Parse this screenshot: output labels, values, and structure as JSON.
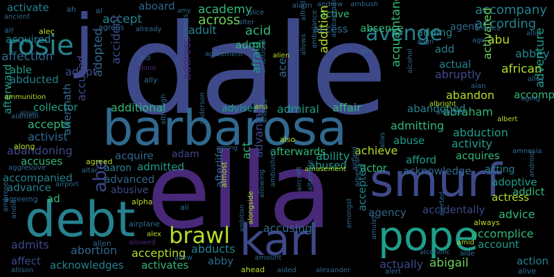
{
  "palette": [
    "#440154",
    "#482878",
    "#3e4989",
    "#31688e",
    "#26828e",
    "#1f9e89",
    "#35b779",
    "#6ece58",
    "#b5de2b",
    "#fde725"
  ],
  "words": [
    {
      "text": "dale",
      "color": "#3e4989"
    },
    {
      "text": "ella",
      "color": "#482878"
    },
    {
      "text": "barbarosa",
      "color": "#31688e"
    },
    {
      "text": "j",
      "color": "#3e4989"
    },
    {
      "text": "smurf",
      "color": "#3e4989"
    },
    {
      "text": "debt",
      "color": "#26828e"
    },
    {
      "text": "karl",
      "color": "#3e4989"
    },
    {
      "text": "pope",
      "color": "#1f9e89"
    },
    {
      "text": "rosie",
      "color": "#26828e"
    },
    {
      "text": "brawl",
      "color": "#b5de2b"
    },
    {
      "text": "avenge",
      "color": "#26828e"
    },
    {
      "text": "abe",
      "color": "#3e4989"
    },
    {
      "text": "accompany",
      "color": "#26828e"
    },
    {
      "text": "according",
      "color": "#26828e"
    },
    {
      "text": "academy",
      "color": "#35b779"
    },
    {
      "text": "across",
      "color": "#6ece58"
    },
    {
      "text": "acid",
      "color": "#35b779"
    },
    {
      "text": "adult",
      "color": "#26828e"
    },
    {
      "text": "admit",
      "color": "#35b779"
    },
    {
      "text": "active",
      "color": "#35b779"
    },
    {
      "text": "access",
      "color": "#31688e"
    },
    {
      "text": "absence",
      "color": "#35b779"
    },
    {
      "text": "accept",
      "color": "#26828e"
    },
    {
      "text": "aboard",
      "color": "#31688e"
    },
    {
      "text": "activate",
      "color": "#26828e"
    },
    {
      "text": "acquired",
      "color": "#26828e"
    },
    {
      "text": "affection",
      "color": "#31688e"
    },
    {
      "text": "able",
      "color": "#1f9e89"
    },
    {
      "text": "abducted",
      "color": "#26828e"
    },
    {
      "text": "adopt",
      "color": "#3e4989"
    },
    {
      "text": "adopted",
      "color": "#31688e"
    },
    {
      "text": "accident",
      "color": "#3e4989"
    },
    {
      "text": "collector",
      "color": "#1f9e89"
    },
    {
      "text": "accepts",
      "color": "#35b779"
    },
    {
      "text": "activist",
      "color": "#31688e"
    },
    {
      "text": "abandoning",
      "color": "#3e4989"
    },
    {
      "text": "accuses",
      "color": "#35b779"
    },
    {
      "text": "accompanied",
      "color": "#26828e"
    },
    {
      "text": "advance",
      "color": "#26828e"
    },
    {
      "text": "additional",
      "color": "#35b779"
    },
    {
      "text": "advises",
      "color": "#1f9e89"
    },
    {
      "text": "admiral",
      "color": "#1f9e89"
    },
    {
      "text": "affair",
      "color": "#35b779"
    },
    {
      "text": "admitting",
      "color": "#35b779"
    },
    {
      "text": "abduction",
      "color": "#1f9e89"
    },
    {
      "text": "abuse",
      "color": "#1f9e89"
    },
    {
      "text": "activity",
      "color": "#1f9e89"
    },
    {
      "text": "achieve",
      "color": "#b5de2b"
    },
    {
      "text": "ability",
      "color": "#1f9e89"
    },
    {
      "text": "afford",
      "color": "#1f9e89"
    },
    {
      "text": "acquires",
      "color": "#35b779"
    },
    {
      "text": "acquire",
      "color": "#31688e"
    },
    {
      "text": "adam",
      "color": "#3e4989"
    },
    {
      "text": "afterwards",
      "color": "#35b779"
    },
    {
      "text": "admitted",
      "color": "#1f9e89"
    },
    {
      "text": "aaron",
      "color": "#26828e"
    },
    {
      "text": "abused",
      "color": "#1f9e89"
    },
    {
      "text": "actor",
      "color": "#35b779"
    },
    {
      "text": "acknowledge",
      "color": "#31688e"
    },
    {
      "text": "acting",
      "color": "#26828e"
    },
    {
      "text": "advanced",
      "color": "#31688e"
    },
    {
      "text": "adoptive",
      "color": "#1f9e89"
    },
    {
      "text": "addict",
      "color": "#35b779"
    },
    {
      "text": "actress",
      "color": "#b5de2b"
    },
    {
      "text": "abusive",
      "color": "#3e4989"
    },
    {
      "text": "ad",
      "color": "#35b779"
    },
    {
      "text": "advice",
      "color": "#35b779"
    },
    {
      "text": "accidentally",
      "color": "#3e4989"
    },
    {
      "text": "agency",
      "color": "#31688e"
    },
    {
      "text": "accusing",
      "color": "#31688e"
    },
    {
      "text": "accomplice",
      "color": "#35b779"
    },
    {
      "text": "account",
      "color": "#1f9e89"
    },
    {
      "text": "abortion",
      "color": "#31688e"
    },
    {
      "text": "accepting",
      "color": "#b5de2b"
    },
    {
      "text": "abducts",
      "color": "#26828e"
    },
    {
      "text": "abby",
      "color": "#31688e"
    },
    {
      "text": "admits",
      "color": "#3e4989"
    },
    {
      "text": "affect",
      "color": "#3e4989"
    },
    {
      "text": "acknowledges",
      "color": "#26828e"
    },
    {
      "text": "activates",
      "color": "#35b779"
    },
    {
      "text": "abigail",
      "color": "#6ece58"
    },
    {
      "text": "action",
      "color": "#26828e"
    },
    {
      "text": "actually",
      "color": "#3e4989"
    },
    {
      "text": "abbey",
      "color": "#26828e"
    },
    {
      "text": "abu",
      "color": "#b5de2b"
    },
    {
      "text": "african",
      "color": "#b5de2b"
    },
    {
      "text": "abruptly",
      "color": "#3e4989"
    },
    {
      "text": "actual",
      "color": "#26828e"
    },
    {
      "text": "add",
      "color": "#26828e"
    },
    {
      "text": "adding",
      "color": "#26828e"
    },
    {
      "text": "agent",
      "color": "#31688e"
    },
    {
      "text": "abandon",
      "color": "#b5de2b"
    },
    {
      "text": "abraham",
      "color": "#35b779"
    },
    {
      "text": "abandoned",
      "color": "#26828e"
    },
    {
      "text": "acquaintance",
      "color": "#35b779"
    },
    {
      "text": "addition",
      "color": "#b5de2b"
    },
    {
      "text": "address",
      "color": "#482878"
    },
    {
      "text": "afraid",
      "color": "#1f9e89"
    },
    {
      "text": "ace",
      "color": "#31688e"
    },
    {
      "text": "act",
      "color": "#35b779"
    },
    {
      "text": "accused",
      "color": "#3e4989"
    },
    {
      "text": "aftermath",
      "color": "#31688e"
    },
    {
      "text": "afterlife",
      "color": "#31688e"
    },
    {
      "text": "advantage",
      "color": "#3e4989"
    },
    {
      "text": "afterward",
      "color": "#1f9e89"
    },
    {
      "text": "accepted",
      "color": "#26828e"
    },
    {
      "text": "accompanies",
      "color": "#35b779"
    },
    {
      "text": "activated",
      "color": "#6ece58"
    },
    {
      "text": "adventure",
      "color": "#1f9e89"
    },
    {
      "text": "ah",
      "color": "#31688e"
    },
    {
      "text": "al",
      "color": "#31688e"
    },
    {
      "text": "ancient",
      "color": "#31688e"
    },
    {
      "text": "air",
      "color": "#31688e"
    },
    {
      "text": "agrees",
      "color": "#31688e"
    },
    {
      "text": "already",
      "color": "#31688e"
    },
    {
      "text": "alarm",
      "color": "#31688e"
    },
    {
      "text": "andrew",
      "color": "#31688e"
    },
    {
      "text": "ambush",
      "color": "#31688e"
    },
    {
      "text": "alice",
      "color": "#31688e"
    },
    {
      "text": "alter",
      "color": "#31688e"
    },
    {
      "text": "alec",
      "color": "#b5de2b"
    },
    {
      "text": "alfred",
      "color": "#31688e"
    },
    {
      "text": "ammunition",
      "color": "#b5de2b"
    },
    {
      "text": "aid",
      "color": "#31688e"
    },
    {
      "text": "alone",
      "color": "#482878"
    },
    {
      "text": "ally",
      "color": "#31688e"
    },
    {
      "text": "alamein",
      "color": "#31688e"
    },
    {
      "text": "alison",
      "color": "#31688e"
    },
    {
      "text": "agreement",
      "color": "#31688e"
    },
    {
      "text": "alien",
      "color": "#b5de2b"
    },
    {
      "text": "aim",
      "color": "#31688e"
    },
    {
      "text": "allows",
      "color": "#31688e"
    },
    {
      "text": "ambulance",
      "color": "#31688e"
    },
    {
      "text": "ambassador",
      "color": "#31688e"
    },
    {
      "text": "align",
      "color": "#31688e"
    },
    {
      "text": "ago",
      "color": "#31688e"
    },
    {
      "text": "america",
      "color": "#31688e"
    },
    {
      "text": "allie",
      "color": "#31688e"
    },
    {
      "text": "alley",
      "color": "#31688e"
    },
    {
      "text": "alan",
      "color": "#31688e"
    },
    {
      "text": "alcohol",
      "color": "#31688e"
    },
    {
      "text": "albright",
      "color": "#b5de2b"
    },
    {
      "text": "alliance",
      "color": "#31688e"
    },
    {
      "text": "albert",
      "color": "#b5de2b"
    },
    {
      "text": "aging",
      "color": "#31688e"
    },
    {
      "text": "amends",
      "color": "#31688e"
    },
    {
      "text": "ambitious",
      "color": "#31688e"
    },
    {
      "text": "ana",
      "color": "#b5de2b"
    },
    {
      "text": "amy",
      "color": "#31688e"
    },
    {
      "text": "although",
      "color": "#31688e"
    },
    {
      "text": "anderson",
      "color": "#31688e"
    },
    {
      "text": "andrea",
      "color": "#31688e"
    },
    {
      "text": "also",
      "color": "#b5de2b"
    },
    {
      "text": "alias",
      "color": "#31688e"
    },
    {
      "text": "amnesia",
      "color": "#31688e"
    },
    {
      "text": "along",
      "color": "#b5de2b"
    },
    {
      "text": "among",
      "color": "#31688e"
    },
    {
      "text": "aggressive",
      "color": "#31688e"
    },
    {
      "text": "altar",
      "color": "#31688e"
    },
    {
      "text": "agreed",
      "color": "#b5de2b"
    },
    {
      "text": "amusement",
      "color": "#b5de2b"
    },
    {
      "text": "airfield",
      "color": "#31688e"
    },
    {
      "text": "airport",
      "color": "#31688e"
    },
    {
      "text": "android",
      "color": "#31688e"
    },
    {
      "text": "agreeing",
      "color": "#31688e"
    },
    {
      "text": "ambrose",
      "color": "#31688e"
    },
    {
      "text": "andie",
      "color": "#31688e"
    },
    {
      "text": "alpha",
      "color": "#b5de2b"
    },
    {
      "text": "ali",
      "color": "#31688e"
    },
    {
      "text": "almost",
      "color": "#b5de2b"
    },
    {
      "text": "alongside",
      "color": "#b5de2b"
    },
    {
      "text": "aircraft",
      "color": "#31688e"
    },
    {
      "text": "allowing",
      "color": "#31688e"
    },
    {
      "text": "ambushed",
      "color": "#31688e"
    },
    {
      "text": "alternate",
      "color": "#31688e"
    },
    {
      "text": "american",
      "color": "#31688e"
    },
    {
      "text": "amongst",
      "color": "#31688e"
    },
    {
      "text": "alerted",
      "color": "#31688e"
    },
    {
      "text": "always",
      "color": "#b5de2b"
    },
    {
      "text": "airplane",
      "color": "#31688e"
    },
    {
      "text": "alex",
      "color": "#b5de2b"
    },
    {
      "text": "allowed",
      "color": "#482878"
    },
    {
      "text": "allen",
      "color": "#31688e"
    },
    {
      "text": "ambition",
      "color": "#31688e"
    },
    {
      "text": "amulet",
      "color": "#31688e"
    },
    {
      "text": "amid",
      "color": "#b5de2b"
    },
    {
      "text": "alcoholic",
      "color": "#31688e"
    },
    {
      "text": "aide",
      "color": "#31688e"
    },
    {
      "text": "allow",
      "color": "#31688e"
    },
    {
      "text": "amount",
      "color": "#31688e"
    },
    {
      "text": "ahead",
      "color": "#b5de2b"
    },
    {
      "text": "aided",
      "color": "#31688e"
    },
    {
      "text": "alexander",
      "color": "#31688e"
    },
    {
      "text": "alert",
      "color": "#31688e"
    },
    {
      "text": "allison",
      "color": "#31688e"
    },
    {
      "text": "alive",
      "color": "#31688e"
    }
  ]
}
